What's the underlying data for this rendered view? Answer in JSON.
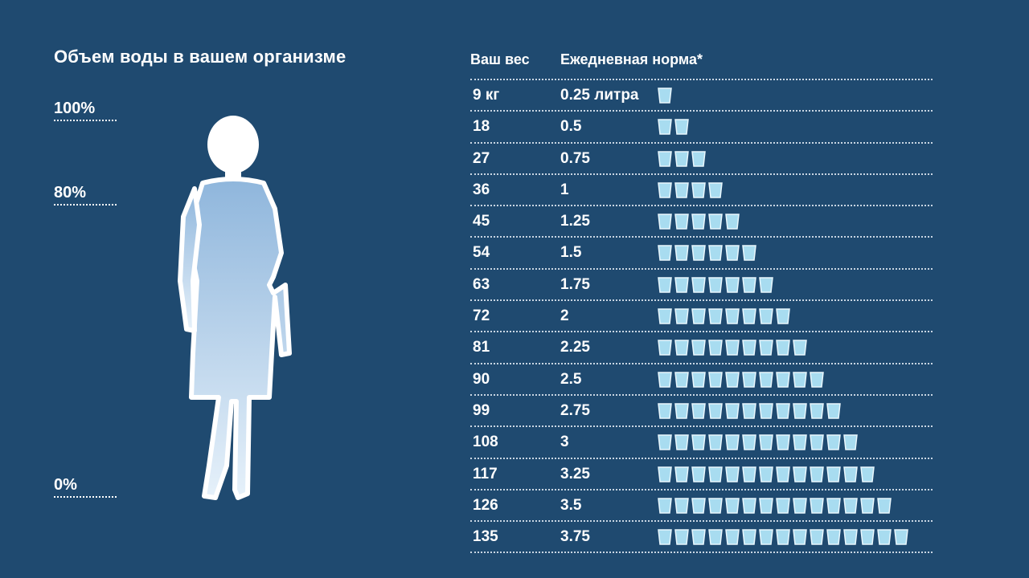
{
  "title": "Объем воды в вашем организме",
  "scale": [
    "100%",
    "80%",
    "0%"
  ],
  "colors": {
    "background": "#1f4a70",
    "cup": "#a8dcf0",
    "figure_fill_top": "#8fb6dc",
    "figure_fill_bottom": "#e6f1fa"
  },
  "chart_data": {
    "type": "table",
    "title": "Объем воды в вашем организме",
    "columns": [
      "Ваш вес",
      "Ежедневная норма*"
    ],
    "rows": [
      {
        "weight": "9 кг",
        "liters": "0.25 литра",
        "cups": 1
      },
      {
        "weight": "18",
        "liters": "0.5",
        "cups": 2
      },
      {
        "weight": "27",
        "liters": "0.75",
        "cups": 3
      },
      {
        "weight": "36",
        "liters": "1",
        "cups": 4
      },
      {
        "weight": "45",
        "liters": "1.25",
        "cups": 5
      },
      {
        "weight": "54",
        "liters": "1.5",
        "cups": 6
      },
      {
        "weight": "63",
        "liters": "1.75",
        "cups": 7
      },
      {
        "weight": "72",
        "liters": "2",
        "cups": 8
      },
      {
        "weight": "81",
        "liters": "2.25",
        "cups": 9
      },
      {
        "weight": "90",
        "liters": "2.5",
        "cups": 10
      },
      {
        "weight": "99",
        "liters": "2.75",
        "cups": 11
      },
      {
        "weight": "108",
        "liters": "3",
        "cups": 12
      },
      {
        "weight": "117",
        "liters": "3.25",
        "cups": 13
      },
      {
        "weight": "126",
        "liters": "3.5",
        "cups": 14
      },
      {
        "weight": "135",
        "liters": "3.75",
        "cups": 15
      }
    ]
  }
}
